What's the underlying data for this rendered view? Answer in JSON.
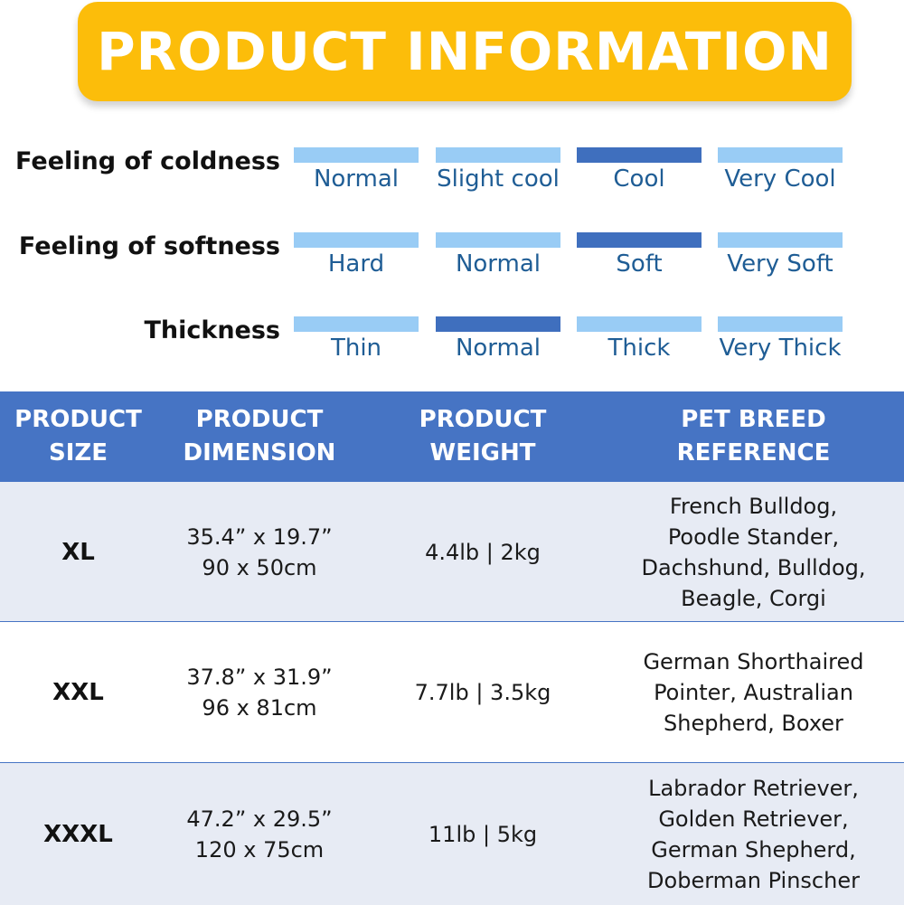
{
  "banner": {
    "title": "PRODUCT INFORMATION"
  },
  "ratings": [
    {
      "label": "Feeling of coldness",
      "options": [
        "Normal",
        "Slight cool",
        "Cool",
        "Very Cool"
      ],
      "selected": 2
    },
    {
      "label": "Feeling of softness",
      "options": [
        "Hard",
        "Normal",
        "Soft",
        "Very Soft"
      ],
      "selected": 2
    },
    {
      "label": "Thickness",
      "options": [
        "Thin",
        "Normal",
        "Thick",
        "Very Thick"
      ],
      "selected": 1
    }
  ],
  "table": {
    "headers": [
      "PRODUCT\nSIZE",
      "PRODUCT\nDIMENSION",
      "PRODUCT\nWEIGHT",
      "PET BREED\nREFERENCE"
    ],
    "rows": [
      {
        "size": "XL",
        "dimension": "35.4” x 19.7”\n90 x 50cm",
        "weight": "4.4lb | 2kg",
        "breeds": "French Bulldog,\nPoodle Stander,\nDachshund, Bulldog,\nBeagle, Corgi"
      },
      {
        "size": "XXL",
        "dimension": "37.8” x 31.9”\n96 x 81cm",
        "weight": "7.7lb | 3.5kg",
        "breeds": "German Shorthaired\nPointer, Australian\nShepherd, Boxer"
      },
      {
        "size": "XXXL",
        "dimension": "47.2” x 29.5”\n120 x 75cm",
        "weight": "11lb | 5kg",
        "breeds": "Labrador Retriever,\nGolden Retriever,\nGerman Shepherd,\nDoberman Pinscher"
      }
    ]
  },
  "colors": {
    "banner": "#fcbd0a",
    "bar_light": "#99ccf5",
    "bar_selected": "#3f6fbe",
    "option_text": "#1f5d95",
    "header_bg": "#4674c4",
    "row_shaded": "#e7ebf4",
    "row_white": "#ffffff"
  }
}
